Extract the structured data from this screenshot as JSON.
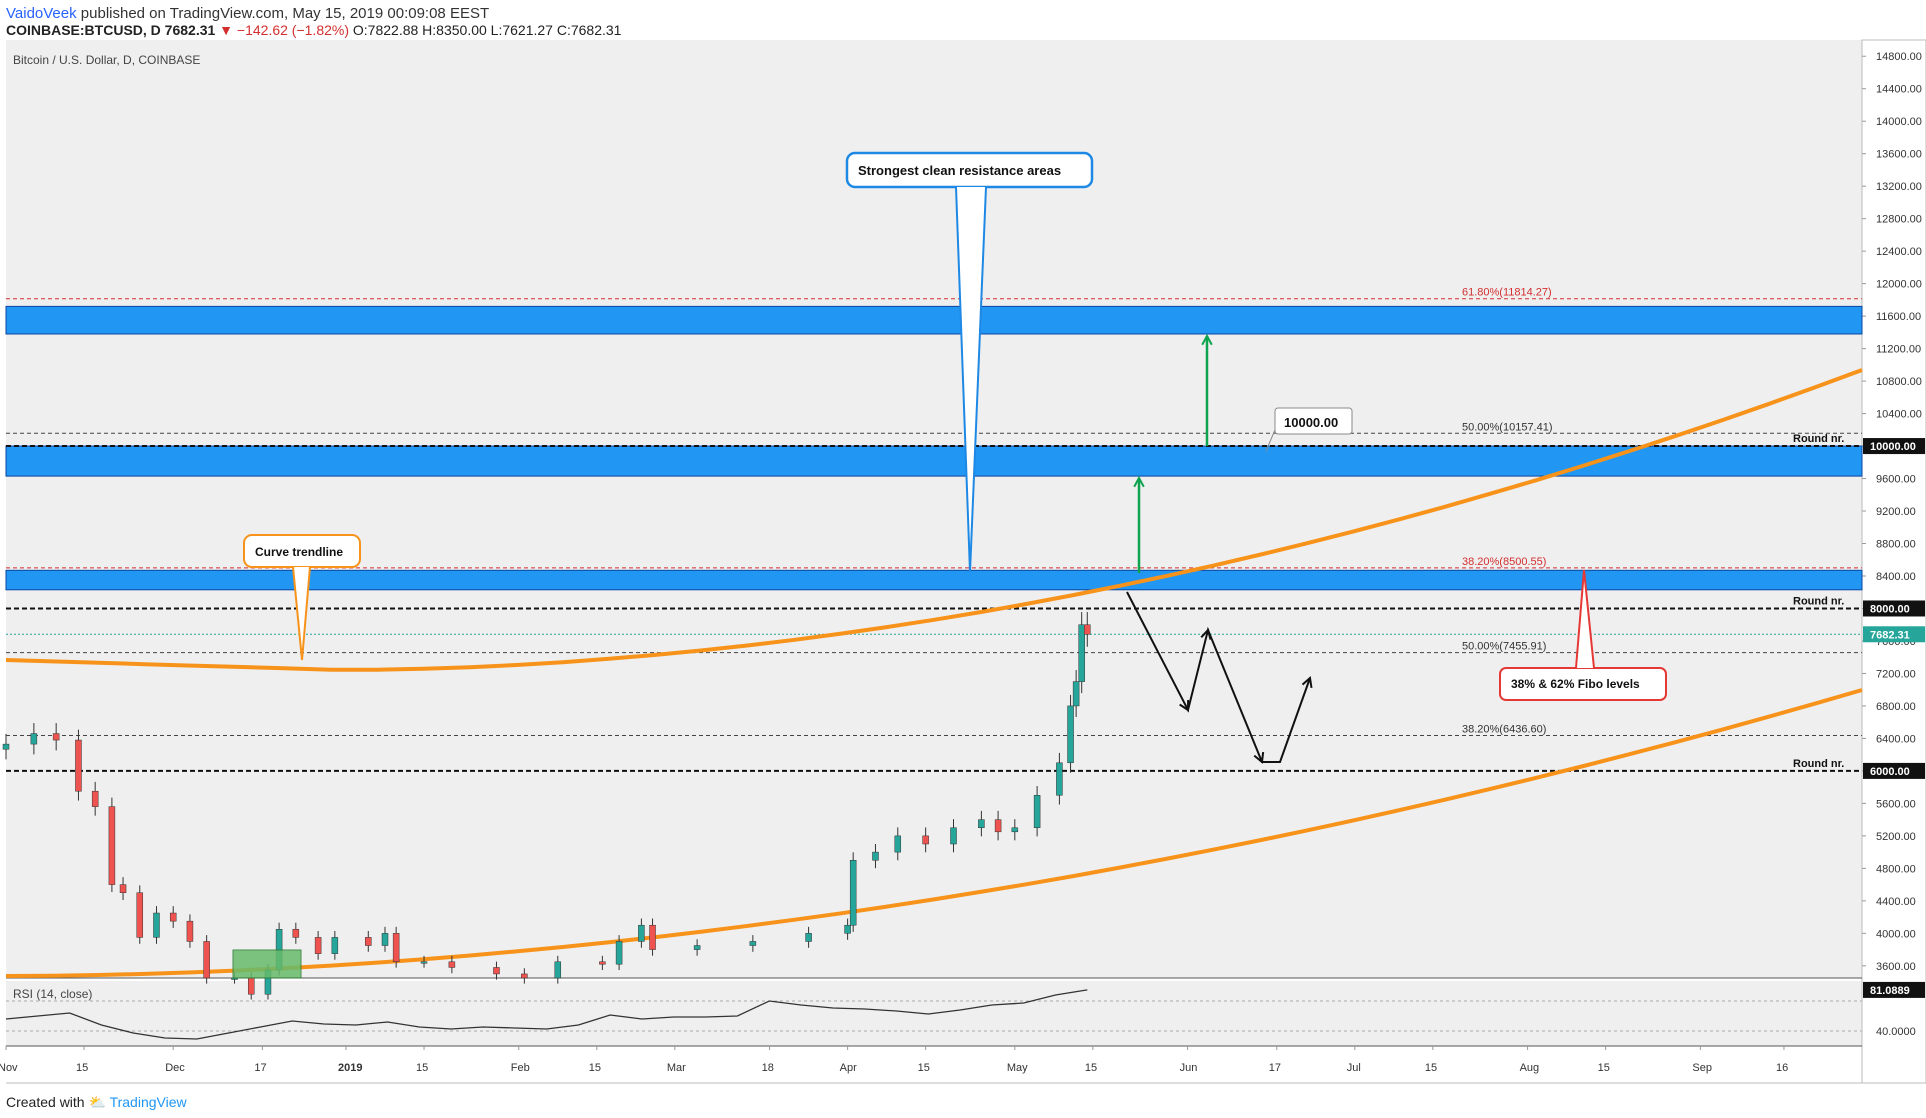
{
  "header": {
    "author": "VaidoVeek",
    "published": "published on TradingView.com, May 15, 2019 00:09:08 EEST",
    "symbol_line_prefix": "COINBASE:BTCUSD, D  7682.31",
    "change": "−142.62 (−1.82%)",
    "ohlc": "O:7822.88  H:8350.00  L:7621.27  C:7682.31"
  },
  "footer": {
    "created_with": "Created with",
    "brand": "TradingView"
  },
  "colors": {
    "up": "#26a69a",
    "down": "#ef5350",
    "zone": "#2196f3",
    "trend": "#f7931a",
    "green_arrow": "#0ea34f",
    "fibo_red": "#d32f2f",
    "callout_blue": "#1e88e5"
  },
  "chart_data": [
    {
      "type": "candlestick",
      "title": "Bitcoin / U.S. Dollar, D, COINBASE",
      "y_range": [
        3450,
        15000
      ],
      "y_ticks": [
        3600,
        4000,
        4400,
        4800,
        5200,
        5600,
        6000,
        6400,
        6800,
        7200,
        7600,
        8000,
        8400,
        8800,
        9200,
        9600,
        10000,
        10400,
        10800,
        11200,
        11600,
        12000,
        12400,
        12800,
        13200,
        13600,
        14000,
        14400,
        14800
      ],
      "x_range": [
        "2018-11-01",
        "2019-09-30"
      ],
      "x_ticks": [
        {
          "date": "2018-11-01",
          "label": "Nov"
        },
        {
          "date": "2018-11-15",
          "label": "15"
        },
        {
          "date": "2018-12-01",
          "label": "Dec"
        },
        {
          "date": "2018-12-17",
          "label": "17"
        },
        {
          "date": "2019-01-01",
          "label": "2019"
        },
        {
          "date": "2019-01-15",
          "label": "15"
        },
        {
          "date": "2019-02-01",
          "label": "Feb"
        },
        {
          "date": "2019-02-15",
          "label": "15"
        },
        {
          "date": "2019-03-01",
          "label": "Mar"
        },
        {
          "date": "2019-03-18",
          "label": "18"
        },
        {
          "date": "2019-04-01",
          "label": "Apr"
        },
        {
          "date": "2019-04-15",
          "label": "15"
        },
        {
          "date": "2019-05-01",
          "label": "May"
        },
        {
          "date": "2019-05-15",
          "label": "15"
        },
        {
          "date": "2019-06-01",
          "label": "Jun"
        },
        {
          "date": "2019-06-17",
          "label": "17"
        },
        {
          "date": "2019-07-01",
          "label": "Jul"
        },
        {
          "date": "2019-07-15",
          "label": "15"
        },
        {
          "date": "2019-08-01",
          "label": "Aug"
        },
        {
          "date": "2019-08-15",
          "label": "15"
        },
        {
          "date": "2019-09-01",
          "label": "Sep"
        },
        {
          "date": "2019-09-16",
          "label": "16"
        }
      ],
      "close_series": [
        [
          "2018-11-01",
          6330
        ],
        [
          "2018-11-06",
          6460
        ],
        [
          "2018-11-10",
          6380
        ],
        [
          "2018-11-14",
          5750
        ],
        [
          "2018-11-17",
          5560
        ],
        [
          "2018-11-20",
          4600
        ],
        [
          "2018-11-22",
          4500
        ],
        [
          "2018-11-25",
          3950
        ],
        [
          "2018-11-28",
          4250
        ],
        [
          "2018-12-01",
          4150
        ],
        [
          "2018-12-04",
          3900
        ],
        [
          "2018-12-07",
          3450
        ],
        [
          "2018-12-12",
          3450
        ],
        [
          "2018-12-15",
          3250
        ],
        [
          "2018-12-18",
          3550
        ],
        [
          "2018-12-20",
          4050
        ],
        [
          "2018-12-23",
          3950
        ],
        [
          "2018-12-27",
          3750
        ],
        [
          "2018-12-30",
          3950
        ],
        [
          "2019-01-05",
          3850
        ],
        [
          "2019-01-08",
          4000
        ],
        [
          "2019-01-10",
          3650
        ],
        [
          "2019-01-15",
          3650
        ],
        [
          "2019-01-20",
          3580
        ],
        [
          "2019-01-28",
          3500
        ],
        [
          "2019-02-02",
          3450
        ],
        [
          "2019-02-08",
          3650
        ],
        [
          "2019-02-16",
          3620
        ],
        [
          "2019-02-19",
          3900
        ],
        [
          "2019-02-23",
          4100
        ],
        [
          "2019-02-25",
          3800
        ],
        [
          "2019-03-05",
          3850
        ],
        [
          "2019-03-15",
          3900
        ],
        [
          "2019-03-25",
          4000
        ],
        [
          "2019-04-01",
          4100
        ],
        [
          "2019-04-02",
          4900
        ],
        [
          "2019-04-06",
          5000
        ],
        [
          "2019-04-10",
          5200
        ],
        [
          "2019-04-15",
          5100
        ],
        [
          "2019-04-20",
          5300
        ],
        [
          "2019-04-25",
          5400
        ],
        [
          "2019-04-28",
          5250
        ],
        [
          "2019-05-01",
          5300
        ],
        [
          "2019-05-05",
          5700
        ],
        [
          "2019-05-09",
          6100
        ],
        [
          "2019-05-11",
          6800
        ],
        [
          "2019-05-12",
          7100
        ],
        [
          "2019-05-13",
          7800
        ],
        [
          "2019-05-14",
          7682.31
        ]
      ],
      "last_price": "7682.31",
      "fib_levels": [
        {
          "label": "61.80%(11814.27)",
          "value": 11814.27
        },
        {
          "label": "50.00%(10157.41)",
          "value": 10157.41
        },
        {
          "label": "38.20%(8500.55)",
          "value": 8500.55
        },
        {
          "label": "50.00%(7455.91)",
          "value": 7455.91
        },
        {
          "label": "38.20%(6436.60)",
          "value": 6436.6
        }
      ],
      "round_numbers": [
        {
          "label": "Round nr.",
          "value": 10000,
          "axis_label": "10000.00"
        },
        {
          "label": "Round nr.",
          "value": 8000,
          "axis_label": "8000.00"
        },
        {
          "label": "Round nr.",
          "value": 6000,
          "axis_label": "6000.00"
        }
      ],
      "resistance_zones": [
        [
          11380,
          11720
        ],
        [
          9630,
          10000
        ],
        [
          8230,
          8470
        ]
      ],
      "annotations": [
        {
          "text": "Strongest clean resistance areas"
        },
        {
          "text": "Curve trendline"
        },
        {
          "text": "10000.00"
        },
        {
          "text": "38% & 62% Fibo levels"
        }
      ]
    },
    {
      "type": "line",
      "title": "RSI (14, close)",
      "y_ticks": [
        40,
        81.0889
      ],
      "last_value": "81.0889",
      "tick_labels": [
        "40.0000",
        "81.0889"
      ]
    }
  ]
}
